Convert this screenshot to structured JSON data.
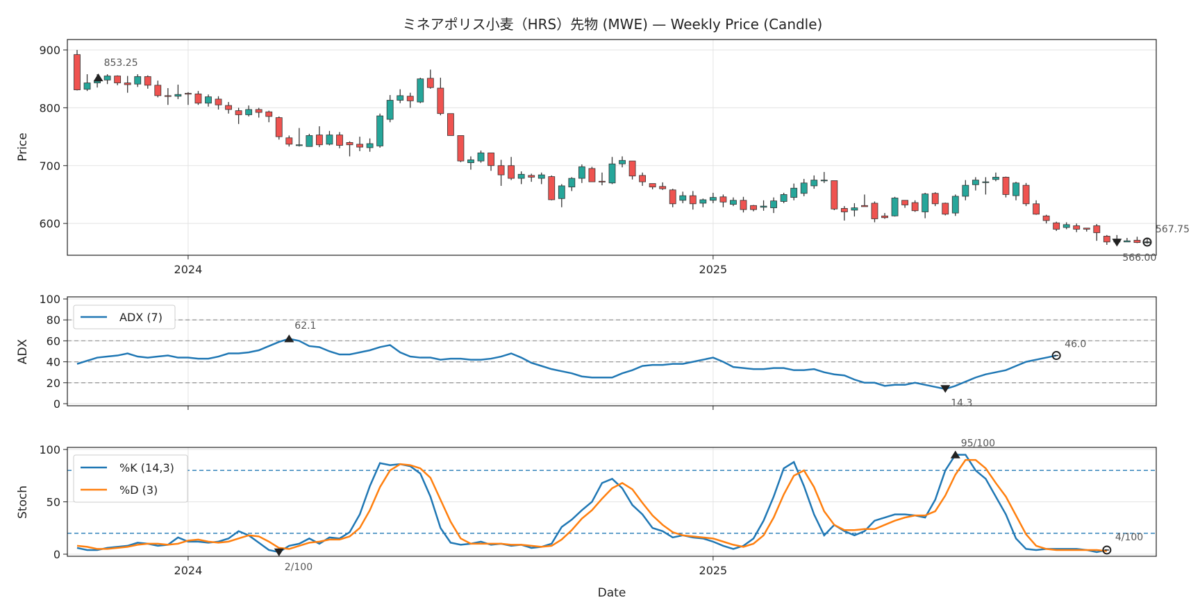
{
  "chart_data": {
    "type": "candlestick",
    "title": "ミネアポリス小麦（HRS）先物 (MWE) — Weekly Price (Candle)",
    "xlabel": "Date",
    "x_ticks": [
      "2024",
      "2025"
    ],
    "x_tick_positions": [
      11,
      63
    ],
    "colors": {
      "up": "#26a69a",
      "down": "#ef5350",
      "wick": "#333333",
      "adx": "#1f77b4",
      "k": "#1f77b4",
      "d": "#ff7f0e",
      "ref": "#999999"
    },
    "price_panel": {
      "ylabel": "Price",
      "ylim": [
        545,
        918
      ],
      "yticks": [
        600,
        700,
        800,
        900
      ],
      "candles": [
        [
          892,
          831,
          900,
          830
        ],
        [
          832,
          843,
          858,
          829
        ],
        [
          843,
          846,
          858,
          835
        ],
        [
          848,
          855,
          858,
          841
        ],
        [
          855,
          843,
          856,
          839
        ],
        [
          843,
          840,
          855,
          826
        ],
        [
          841,
          854,
          858,
          836
        ],
        [
          854,
          839,
          856,
          833
        ],
        [
          839,
          821,
          847,
          818
        ],
        [
          821,
          820,
          834,
          805
        ],
        [
          820,
          823,
          840,
          815
        ],
        [
          825,
          824,
          827,
          805
        ],
        [
          824,
          808,
          829,
          805
        ],
        [
          808,
          819,
          823,
          802
        ],
        [
          815,
          805,
          820,
          797
        ],
        [
          804,
          797,
          810,
          790
        ],
        [
          795,
          788,
          800,
          772
        ],
        [
          788,
          797,
          804,
          785
        ],
        [
          797,
          792,
          800,
          783
        ],
        [
          793,
          785,
          795,
          775
        ],
        [
          783,
          750,
          785,
          745
        ],
        [
          748,
          737,
          752,
          733
        ],
        [
          735,
          736,
          765,
          733
        ],
        [
          733,
          752,
          755,
          733
        ],
        [
          753,
          736,
          768,
          732
        ],
        [
          737,
          753,
          760,
          735
        ],
        [
          753,
          735,
          758,
          730
        ],
        [
          740,
          736,
          742,
          716
        ],
        [
          737,
          732,
          750,
          725
        ],
        [
          731,
          738,
          747,
          724
        ],
        [
          734,
          786,
          790,
          731
        ],
        [
          780,
          813,
          822,
          775
        ],
        [
          813,
          821,
          832,
          808
        ],
        [
          820,
          812,
          826,
          800
        ],
        [
          810,
          850,
          852,
          808
        ],
        [
          851,
          835,
          866,
          833
        ],
        [
          834,
          790,
          852,
          787
        ],
        [
          790,
          752,
          790,
          752
        ],
        [
          752,
          708,
          752,
          706
        ],
        [
          705,
          710,
          716,
          693
        ],
        [
          708,
          722,
          726,
          705
        ],
        [
          722,
          700,
          722,
          691
        ],
        [
          700,
          684,
          710,
          665
        ],
        [
          700,
          678,
          715,
          675
        ],
        [
          678,
          685,
          690,
          668
        ],
        [
          683,
          680,
          686,
          672
        ],
        [
          678,
          684,
          688,
          668
        ],
        [
          681,
          641,
          683,
          640
        ],
        [
          643,
          665,
          668,
          628
        ],
        [
          663,
          678,
          680,
          656
        ],
        [
          678,
          698,
          702,
          670
        ],
        [
          695,
          672,
          698,
          672
        ],
        [
          673,
          672,
          688,
          666
        ],
        [
          670,
          703,
          715,
          668
        ],
        [
          703,
          709,
          716,
          697
        ],
        [
          708,
          682,
          708,
          676
        ],
        [
          683,
          672,
          688,
          665
        ],
        [
          669,
          663,
          669,
          659
        ],
        [
          664,
          660,
          671,
          658
        ],
        [
          658,
          634,
          660,
          628
        ],
        [
          640,
          648,
          655,
          635
        ],
        [
          648,
          634,
          656,
          624
        ],
        [
          635,
          641,
          643,
          628
        ],
        [
          640,
          645,
          653,
          635
        ],
        [
          646,
          637,
          650,
          628
        ],
        [
          633,
          640,
          645,
          630
        ],
        [
          640,
          624,
          646,
          619
        ],
        [
          631,
          624,
          632,
          621
        ],
        [
          628,
          630,
          640,
          622
        ],
        [
          627,
          639,
          645,
          618
        ],
        [
          638,
          650,
          653,
          635
        ],
        [
          645,
          661,
          669,
          640
        ],
        [
          652,
          670,
          677,
          647
        ],
        [
          665,
          675,
          683,
          660
        ],
        [
          675,
          675,
          689,
          670
        ],
        [
          674,
          625,
          674,
          623
        ],
        [
          626,
          620,
          630,
          605
        ],
        [
          623,
          627,
          635,
          612
        ],
        [
          631,
          629,
          650,
          629
        ],
        [
          635,
          608,
          638,
          602
        ],
        [
          613,
          610,
          618,
          608
        ],
        [
          613,
          644,
          646,
          612
        ],
        [
          640,
          632,
          640,
          627
        ],
        [
          636,
          622,
          640,
          620
        ],
        [
          620,
          651,
          653,
          609
        ],
        [
          652,
          634,
          654,
          630
        ],
        [
          635,
          616,
          636,
          614
        ],
        [
          618,
          647,
          650,
          613
        ],
        [
          647,
          666,
          675,
          640
        ],
        [
          667,
          675,
          680,
          657
        ],
        [
          672,
          672,
          680,
          650
        ],
        [
          676,
          680,
          688,
          673
        ],
        [
          680,
          650,
          681,
          645
        ],
        [
          648,
          670,
          672,
          640
        ],
        [
          666,
          634,
          670,
          630
        ],
        [
          634,
          616,
          640,
          615
        ],
        [
          613,
          605,
          615,
          600
        ],
        [
          601,
          590,
          603,
          587
        ],
        [
          593,
          598,
          602,
          590
        ],
        [
          596,
          590,
          600,
          585
        ],
        [
          592,
          590,
          592,
          586
        ],
        [
          596,
          584,
          599,
          570
        ],
        [
          578,
          568,
          580,
          563
        ],
        [
          568,
          573,
          580,
          566
        ],
        [
          568,
          570,
          575,
          568
        ],
        [
          571,
          567,
          577,
          566
        ],
        [
          567,
          568,
          575,
          565
        ]
      ],
      "annotations": {
        "max": "853.25",
        "min": "566.00",
        "last": "567.75"
      }
    },
    "adx_panel": {
      "ylabel": "ADX",
      "ylim": [
        -2,
        102
      ],
      "yticks": [
        0,
        20,
        40,
        60,
        80,
        100
      ],
      "ref_lines": [
        20,
        40,
        60,
        80
      ],
      "series": [
        {
          "name": "ADX (7)",
          "values": [
            38,
            41,
            44,
            45,
            46,
            48,
            45,
            44,
            45,
            46,
            44,
            44,
            43,
            43,
            45,
            48,
            48,
            49,
            51,
            55,
            59,
            62,
            60,
            55,
            54,
            50,
            47,
            47,
            49,
            51,
            54,
            56,
            49,
            45,
            44,
            44,
            42,
            43,
            43,
            42,
            42,
            43,
            45,
            48,
            44,
            39,
            36,
            33,
            31,
            29,
            26,
            25,
            25,
            25,
            29,
            32,
            36,
            37,
            37,
            38,
            38,
            40,
            42,
            44,
            40,
            35,
            34,
            33,
            33,
            34,
            34,
            32,
            32,
            33,
            30,
            28,
            27,
            23,
            20,
            20,
            17,
            18,
            18,
            20,
            18,
            16,
            14,
            17,
            21,
            25,
            28,
            30,
            32,
            36,
            40,
            42,
            44,
            46
          ]
        }
      ],
      "annotations": {
        "max": "62.1",
        "min": "14.3",
        "last": "46.0"
      }
    },
    "stoch_panel": {
      "ylabel": "Stoch",
      "ylim": [
        -2,
        102
      ],
      "yticks": [
        0,
        50,
        100
      ],
      "ref_lines": [
        20,
        80
      ],
      "series": [
        {
          "name": "%K (14,3)",
          "values": [
            6,
            4,
            4,
            6,
            7,
            8,
            11,
            10,
            8,
            9,
            16,
            12,
            12,
            11,
            12,
            15,
            22,
            18,
            11,
            4,
            2,
            8,
            10,
            15,
            10,
            16,
            15,
            21,
            38,
            65,
            87,
            85,
            86,
            84,
            77,
            55,
            25,
            11,
            9,
            10,
            12,
            9,
            10,
            8,
            9,
            6,
            7,
            10,
            26,
            33,
            42,
            50,
            68,
            72,
            63,
            47,
            38,
            25,
            22,
            16,
            18,
            16,
            15,
            12,
            8,
            5,
            8,
            15,
            32,
            55,
            82,
            88,
            65,
            38,
            18,
            28,
            22,
            18,
            22,
            32,
            35,
            38,
            38,
            37,
            35,
            52,
            80,
            95,
            95,
            80,
            72,
            55,
            38,
            15,
            5,
            4,
            5,
            5,
            5,
            5,
            4,
            2,
            4
          ]
        },
        {
          "name": "%D (3)",
          "values": [
            8,
            7,
            5,
            5,
            6,
            7,
            9,
            10,
            10,
            9,
            10,
            13,
            14,
            12,
            11,
            12,
            15,
            18,
            17,
            12,
            6,
            5,
            8,
            11,
            12,
            14,
            14,
            17,
            25,
            42,
            64,
            80,
            86,
            85,
            82,
            73,
            52,
            31,
            15,
            10,
            10,
            10,
            10,
            9,
            9,
            8,
            7,
            8,
            14,
            23,
            34,
            42,
            53,
            63,
            68,
            62,
            49,
            37,
            28,
            21,
            18,
            17,
            16,
            15,
            12,
            9,
            7,
            10,
            18,
            35,
            57,
            75,
            80,
            64,
            41,
            28,
            23,
            23,
            24,
            24,
            28,
            32,
            35,
            37,
            37,
            41,
            56,
            76,
            90,
            90,
            82,
            68,
            55,
            37,
            19,
            8,
            5,
            4,
            4,
            4,
            4,
            4,
            3
          ]
        }
      ],
      "annotations": {
        "max": "95/100",
        "min": "2/100",
        "last": "4/100"
      }
    }
  }
}
